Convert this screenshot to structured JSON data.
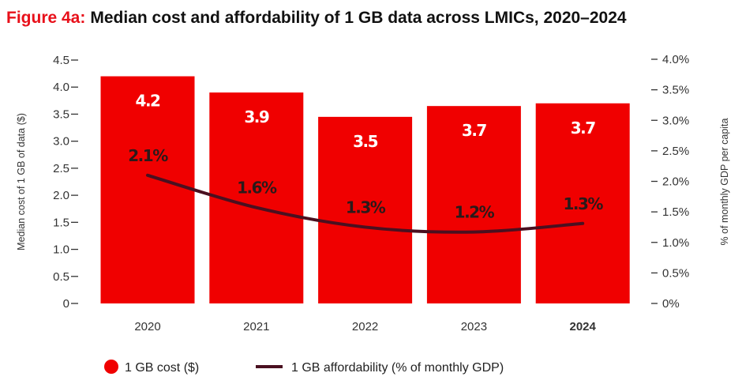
{
  "chart_data": {
    "type": "bar+line",
    "title_prefix": "Figure 4a:",
    "title": "Median cost and affordability of 1 GB data across LMICs, 2020–2024",
    "categories": [
      "2020",
      "2021",
      "2022",
      "2023",
      "2024"
    ],
    "highlight_category": "2024",
    "ylabel": "Median cost of 1 GB of data ($)",
    "y2label": "% of monthly GDP per capita",
    "ylim": [
      0,
      4.5
    ],
    "y2lim": [
      0,
      4.0
    ],
    "yticks": [
      "0",
      "0.5",
      "1.0",
      "1.5",
      "2.0",
      "2.5",
      "3.0",
      "3.5",
      "4.0",
      "4.5"
    ],
    "y2ticks": [
      "0%",
      "0.5%",
      "1.0%",
      "1.5%",
      "2.0%",
      "2.5%",
      "3.0%",
      "3.5%",
      "4.0%"
    ],
    "grid": false,
    "legend_position": "bottom",
    "series": [
      {
        "name": "1 GB cost ($)",
        "type": "bar",
        "axis": "left",
        "color": "#f00000",
        "values": [
          4.2,
          3.9,
          3.45,
          3.65,
          3.7
        ],
        "labels": [
          "4.2",
          "3.9",
          "3.5",
          "3.7",
          "3.7"
        ]
      },
      {
        "name": "1 GB affordability (% of monthly GDP)",
        "type": "line",
        "axis": "right",
        "color": "#4a1020",
        "values": [
          2.1,
          1.57,
          1.25,
          1.17,
          1.31
        ],
        "labels": [
          "2.1%",
          "1.6%",
          "1.3%",
          "1.2%",
          "1.3%"
        ]
      }
    ]
  }
}
